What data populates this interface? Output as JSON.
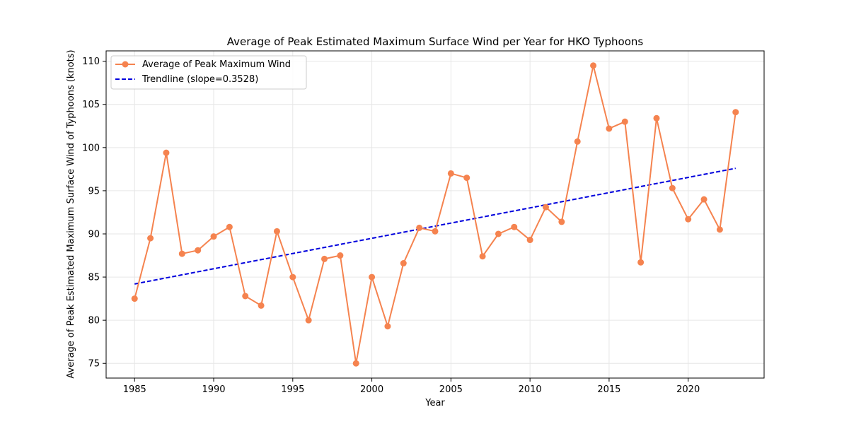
{
  "chart_data": {
    "type": "line",
    "title": "Average of Peak Estimated Maximum Surface Wind per Year for HKO Typhoons",
    "xlabel": "Year",
    "ylabel": "Average of Peak Estimated Maximum Surface Wind of Typhoons (knots)",
    "xlim": [
      1983.2,
      2024.8
    ],
    "ylim": [
      73.3,
      111.2
    ],
    "xticks": [
      1985,
      1990,
      1995,
      2000,
      2005,
      2010,
      2015,
      2020
    ],
    "yticks": [
      75,
      80,
      85,
      90,
      95,
      100,
      105,
      110
    ],
    "grid": true,
    "legend_position": "top-left",
    "x": [
      1985,
      1986,
      1987,
      1988,
      1989,
      1990,
      1991,
      1992,
      1993,
      1994,
      1995,
      1996,
      1997,
      1998,
      1999,
      2000,
      2001,
      2002,
      2003,
      2004,
      2005,
      2006,
      2007,
      2008,
      2009,
      2010,
      2011,
      2012,
      2013,
      2014,
      2015,
      2016,
      2017,
      2018,
      2019,
      2020,
      2021,
      2022,
      2023
    ],
    "series": [
      {
        "name": "Average of Peak Maximum Wind",
        "style": "line-marker",
        "color": "#f5834f",
        "values": [
          82.5,
          89.5,
          99.4,
          87.7,
          88.1,
          89.7,
          90.8,
          82.8,
          81.7,
          90.3,
          85.0,
          80.0,
          87.1,
          87.5,
          75.0,
          85.0,
          79.3,
          86.6,
          90.7,
          90.3,
          97.0,
          96.5,
          87.4,
          90.0,
          90.8,
          89.3,
          93.1,
          91.4,
          100.7,
          109.5,
          102.2,
          103.0,
          86.7,
          103.4,
          95.3,
          91.7,
          94.0,
          90.5,
          104.1
        ]
      },
      {
        "name": "Trendline (slope=0.3528)",
        "style": "dashed",
        "color": "#0000dd",
        "x": [
          1985,
          2023
        ],
        "values": [
          84.2,
          97.6
        ]
      }
    ]
  }
}
